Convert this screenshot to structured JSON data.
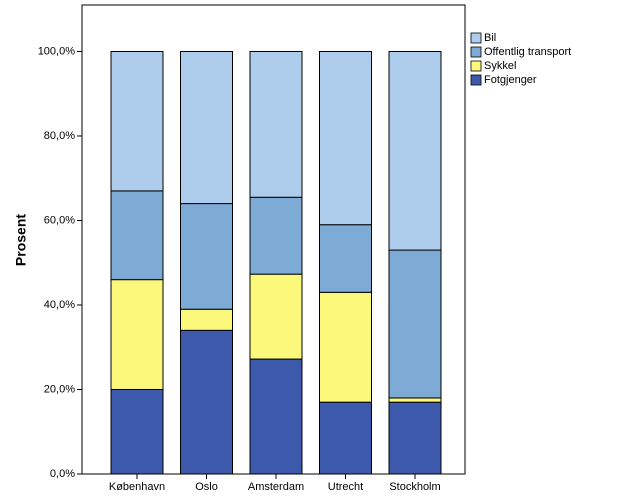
{
  "chart_data": {
    "type": "stacked_bar",
    "y_label": "Prosent",
    "categories": [
      "København",
      "Oslo",
      "Amsterdam",
      "Utrecht",
      "Stockholm"
    ],
    "series": [
      {
        "name": "Fotgjenger",
        "color": "#3d59ab",
        "values": [
          20,
          34,
          27.2,
          17,
          17
        ]
      },
      {
        "name": "Sykkel",
        "color": "#fbf87b",
        "values": [
          26,
          5,
          20.1,
          26,
          1
        ]
      },
      {
        "name": "Offentlig transport",
        "color": "#7eaad6",
        "values": [
          21,
          25,
          18.2,
          16,
          35
        ]
      },
      {
        "name": "Bil",
        "color": "#aecdec",
        "values": [
          33,
          36,
          34.5,
          41,
          47
        ]
      }
    ],
    "ylim": [
      0,
      111
    ],
    "yticks": [
      {
        "value": 0,
        "label": "0,0%"
      },
      {
        "value": 20,
        "label": "20,0%"
      },
      {
        "value": 40,
        "label": "40,0%"
      },
      {
        "value": 60,
        "label": "60,0%"
      },
      {
        "value": 80,
        "label": "80,0%"
      },
      {
        "value": 100,
        "label": "100,0%"
      }
    ],
    "legend": "top-right-outside"
  }
}
